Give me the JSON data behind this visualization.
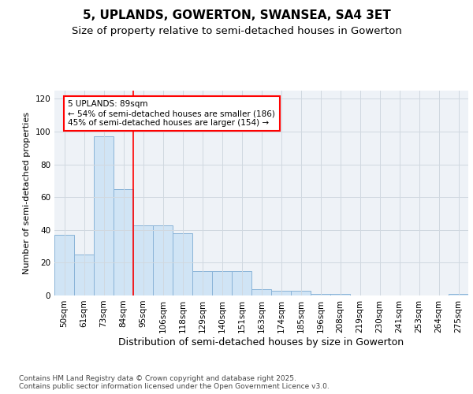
{
  "title": "5, UPLANDS, GOWERTON, SWANSEA, SA4 3ET",
  "subtitle": "Size of property relative to semi-detached houses in Gowerton",
  "xlabel": "Distribution of semi-detached houses by size in Gowerton",
  "ylabel": "Number of semi-detached properties",
  "categories": [
    "50sqm",
    "61sqm",
    "73sqm",
    "84sqm",
    "95sqm",
    "106sqm",
    "118sqm",
    "129sqm",
    "140sqm",
    "151sqm",
    "163sqm",
    "174sqm",
    "185sqm",
    "196sqm",
    "208sqm",
    "219sqm",
    "230sqm",
    "241sqm",
    "253sqm",
    "264sqm",
    "275sqm"
  ],
  "values": [
    37,
    25,
    97,
    65,
    43,
    43,
    38,
    15,
    15,
    15,
    4,
    3,
    3,
    1,
    1,
    0,
    0,
    0,
    0,
    0,
    1
  ],
  "bar_color": "#d0e4f5",
  "bar_edge_color": "#8ab4d8",
  "red_line_index": 3,
  "annotation_text": "5 UPLANDS: 89sqm\n← 54% of semi-detached houses are smaller (186)\n45% of semi-detached houses are larger (154) →",
  "annotation_box_color": "white",
  "annotation_box_edge_color": "red",
  "ylim": [
    0,
    125
  ],
  "yticks": [
    0,
    20,
    40,
    60,
    80,
    100,
    120
  ],
  "grid_color": "#d0d8e0",
  "background_color": "#eef2f7",
  "footer_text": "Contains HM Land Registry data © Crown copyright and database right 2025.\nContains public sector information licensed under the Open Government Licence v3.0.",
  "title_fontsize": 11,
  "subtitle_fontsize": 9.5,
  "xlabel_fontsize": 9,
  "ylabel_fontsize": 8,
  "tick_fontsize": 7.5,
  "annotation_fontsize": 7.5,
  "footer_fontsize": 6.5
}
